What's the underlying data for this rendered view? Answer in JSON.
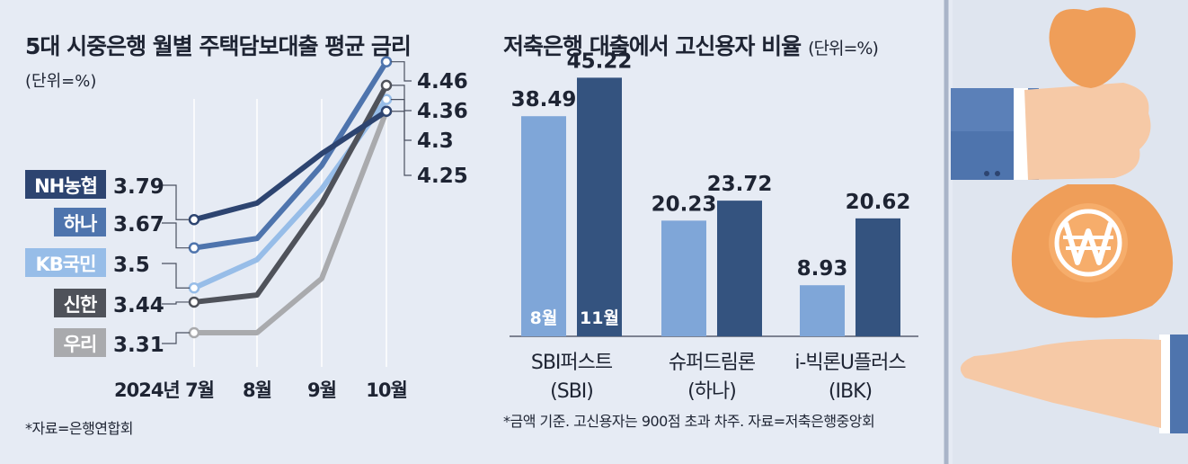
{
  "colors": {
    "NH": "#2d4470",
    "Hana": "#4e74ad",
    "KB": "#97bde8",
    "Shinhan": "#4f525a",
    "Woori": "#a9aaad",
    "bar_aug": "#7fa6d8",
    "bar_nov": "#34537f",
    "background": "#e6ebf4",
    "divider": "#a9b4c8"
  },
  "chart_data": [
    {
      "type": "line",
      "title": "5대 시중은행 월별 주택담보대출 평균 금리",
      "unit": "(단위=%)",
      "categories": [
        "2024년 7월",
        "8월",
        "9월",
        "10월"
      ],
      "series": [
        {
          "name": "NH농협",
          "values": [
            3.79,
            3.86,
            4.07,
            4.25
          ]
        },
        {
          "name": "하나",
          "values": [
            3.67,
            3.71,
            4.02,
            4.46
          ]
        },
        {
          "name": "KB국민",
          "values": [
            3.5,
            3.62,
            3.92,
            4.3
          ]
        },
        {
          "name": "신한",
          "values": [
            3.44,
            3.47,
            3.86,
            4.36
          ]
        },
        {
          "name": "우리",
          "values": [
            3.31,
            3.31,
            3.54,
            4.25
          ]
        }
      ],
      "start_labels": [
        "3.79",
        "3.67",
        "3.5",
        "3.44",
        "3.31"
      ],
      "end_labels": [
        "4.46",
        "4.36",
        "4.3",
        "4.25"
      ],
      "source": "*자료=은행연합회"
    },
    {
      "type": "bar",
      "title": "저축은행 대출에서 고신용자 비율",
      "unit": "(단위=%)",
      "categories": [
        "SBI퍼스트\n(SBI)",
        "슈퍼드림론\n(하나)",
        "i-빅론U플러스\n(IBK)"
      ],
      "series": [
        {
          "name": "8월",
          "values": [
            38.49,
            20.23,
            8.93
          ]
        },
        {
          "name": "11월",
          "values": [
            45.22,
            23.72,
            20.62
          ]
        }
      ],
      "value_labels": [
        [
          "38.49",
          "20.23",
          "8.93"
        ],
        [
          "45.22",
          "23.72",
          "20.62"
        ]
      ],
      "ylim": [
        0,
        50
      ],
      "note": "*금액 기준. 고신용자는 900점 초과 차주. 자료=저축은행중앙회"
    }
  ]
}
